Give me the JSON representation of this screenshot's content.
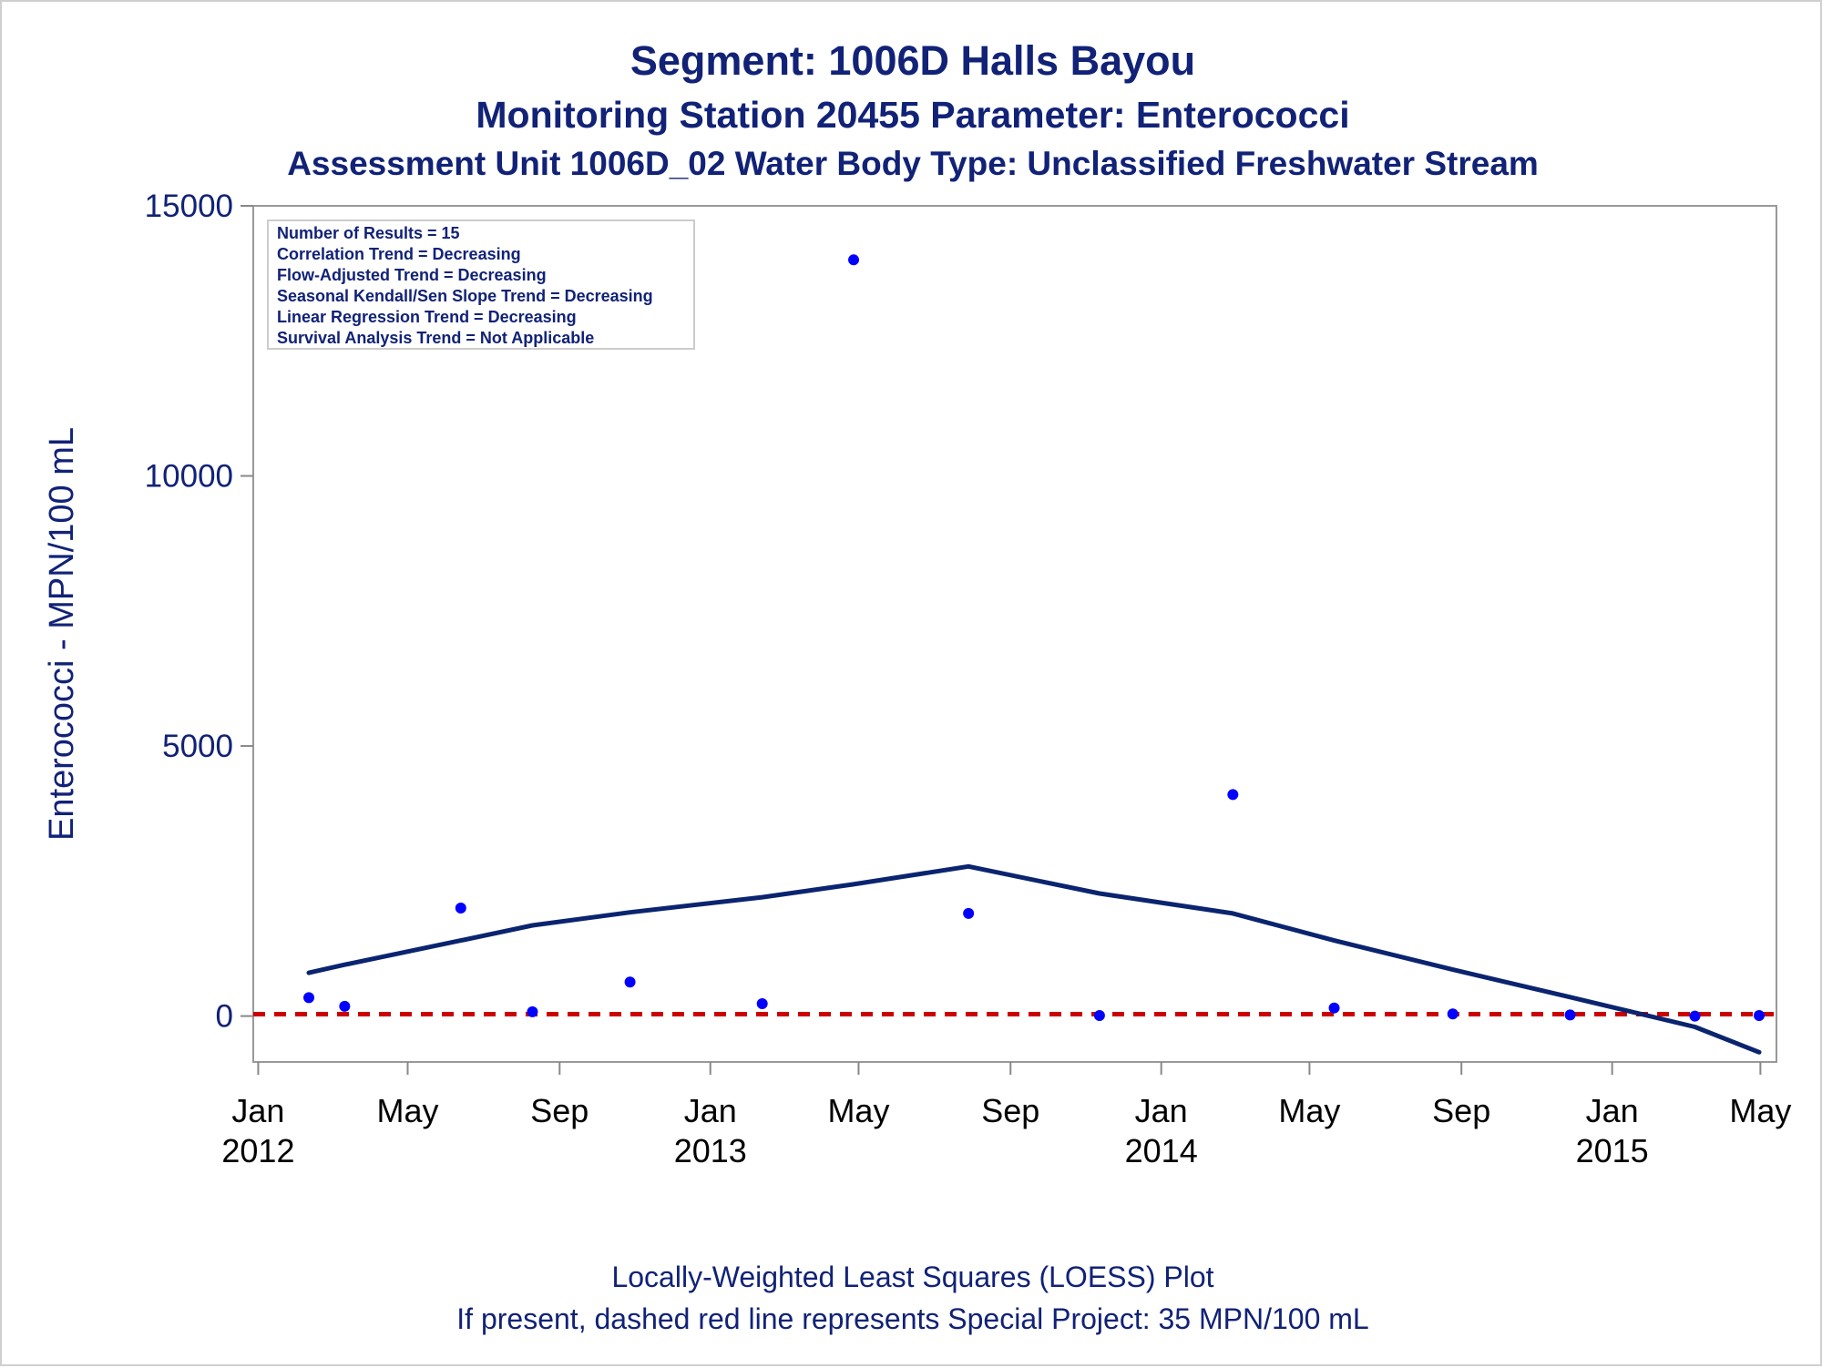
{
  "titles": {
    "line1": "Segment: 1006D  Halls Bayou",
    "line2": "Monitoring Station 20455 Parameter: Enterococci",
    "line3": "Assessment Unit 1006D_02   Water Body Type: Unclassified Freshwater Stream"
  },
  "inset_box": [
    "Number of Results = 15",
    "Correlation Trend = Decreasing",
    "Flow-Adjusted Trend = Decreasing",
    "Seasonal Kendall/Sen Slope Trend = Decreasing",
    "Linear Regression Trend = Decreasing",
    "Survival Analysis Trend = Not Applicable"
  ],
  "footnotes": {
    "line1": "Locally-Weighted Least Squares (LOESS) Plot",
    "line2": "If present, dashed red line represents Special Project: 35 MPN/100 mL"
  },
  "colors": {
    "text": "#112277",
    "points": "#0000ff",
    "loess": "#0a2470",
    "reference": "#cc0000",
    "axes": "#888888"
  },
  "chart_data": {
    "type": "scatter",
    "title": "Segment: 1006D  Halls Bayou",
    "ylabel": "Enterococci - MPN/100 mL",
    "xlabel": "",
    "ylim": [
      -850,
      15000
    ],
    "xlim": [
      "2011-12-28",
      "2015-05-14"
    ],
    "y_ticks": [
      0,
      5000,
      10000,
      15000
    ],
    "x_ticks": [
      {
        "date": "2012-01-01",
        "label": "Jan",
        "year": "2012"
      },
      {
        "date": "2012-05-01",
        "label": "May",
        "year": ""
      },
      {
        "date": "2012-09-01",
        "label": "Sep",
        "year": ""
      },
      {
        "date": "2013-01-01",
        "label": "Jan",
        "year": "2013"
      },
      {
        "date": "2013-05-01",
        "label": "May",
        "year": ""
      },
      {
        "date": "2013-09-01",
        "label": "Sep",
        "year": ""
      },
      {
        "date": "2014-01-01",
        "label": "Jan",
        "year": "2014"
      },
      {
        "date": "2014-05-01",
        "label": "May",
        "year": ""
      },
      {
        "date": "2014-09-01",
        "label": "Sep",
        "year": ""
      },
      {
        "date": "2015-01-01",
        "label": "Jan",
        "year": "2015"
      },
      {
        "date": "2015-05-01",
        "label": "May",
        "year": ""
      }
    ],
    "points": [
      {
        "x": "2012-02-11",
        "y": 340
      },
      {
        "x": "2012-03-11",
        "y": 180
      },
      {
        "x": "2012-06-13",
        "y": 2000
      },
      {
        "x": "2012-08-10",
        "y": 80
      },
      {
        "x": "2012-10-28",
        "y": 630
      },
      {
        "x": "2013-02-12",
        "y": 230
      },
      {
        "x": "2013-04-27",
        "y": 14000
      },
      {
        "x": "2013-07-29",
        "y": 1900
      },
      {
        "x": "2013-11-12",
        "y": 10
      },
      {
        "x": "2014-02-28",
        "y": 4100
      },
      {
        "x": "2014-05-21",
        "y": 150
      },
      {
        "x": "2014-08-25",
        "y": 40
      },
      {
        "x": "2014-11-28",
        "y": 20
      },
      {
        "x": "2015-03-09",
        "y": 0
      },
      {
        "x": "2015-04-30",
        "y": 10
      }
    ],
    "loess": [
      {
        "x": "2012-02-11",
        "y": 800
      },
      {
        "x": "2012-03-11",
        "y": 950
      },
      {
        "x": "2012-06-13",
        "y": 1400
      },
      {
        "x": "2012-08-10",
        "y": 1680
      },
      {
        "x": "2012-10-28",
        "y": 1920
      },
      {
        "x": "2013-02-12",
        "y": 2200
      },
      {
        "x": "2013-04-27",
        "y": 2440
      },
      {
        "x": "2013-07-29",
        "y": 2770
      },
      {
        "x": "2013-11-12",
        "y": 2270
      },
      {
        "x": "2014-02-28",
        "y": 1900
      },
      {
        "x": "2014-05-21",
        "y": 1400
      },
      {
        "x": "2014-08-25",
        "y": 860
      },
      {
        "x": "2014-11-28",
        "y": 350
      },
      {
        "x": "2015-03-09",
        "y": -200
      },
      {
        "x": "2015-04-30",
        "y": -670
      }
    ],
    "reference_line": {
      "y": 35,
      "label": "Special Project: 35 MPN/100 mL"
    },
    "legend_placement": "top-left",
    "grid": false
  }
}
